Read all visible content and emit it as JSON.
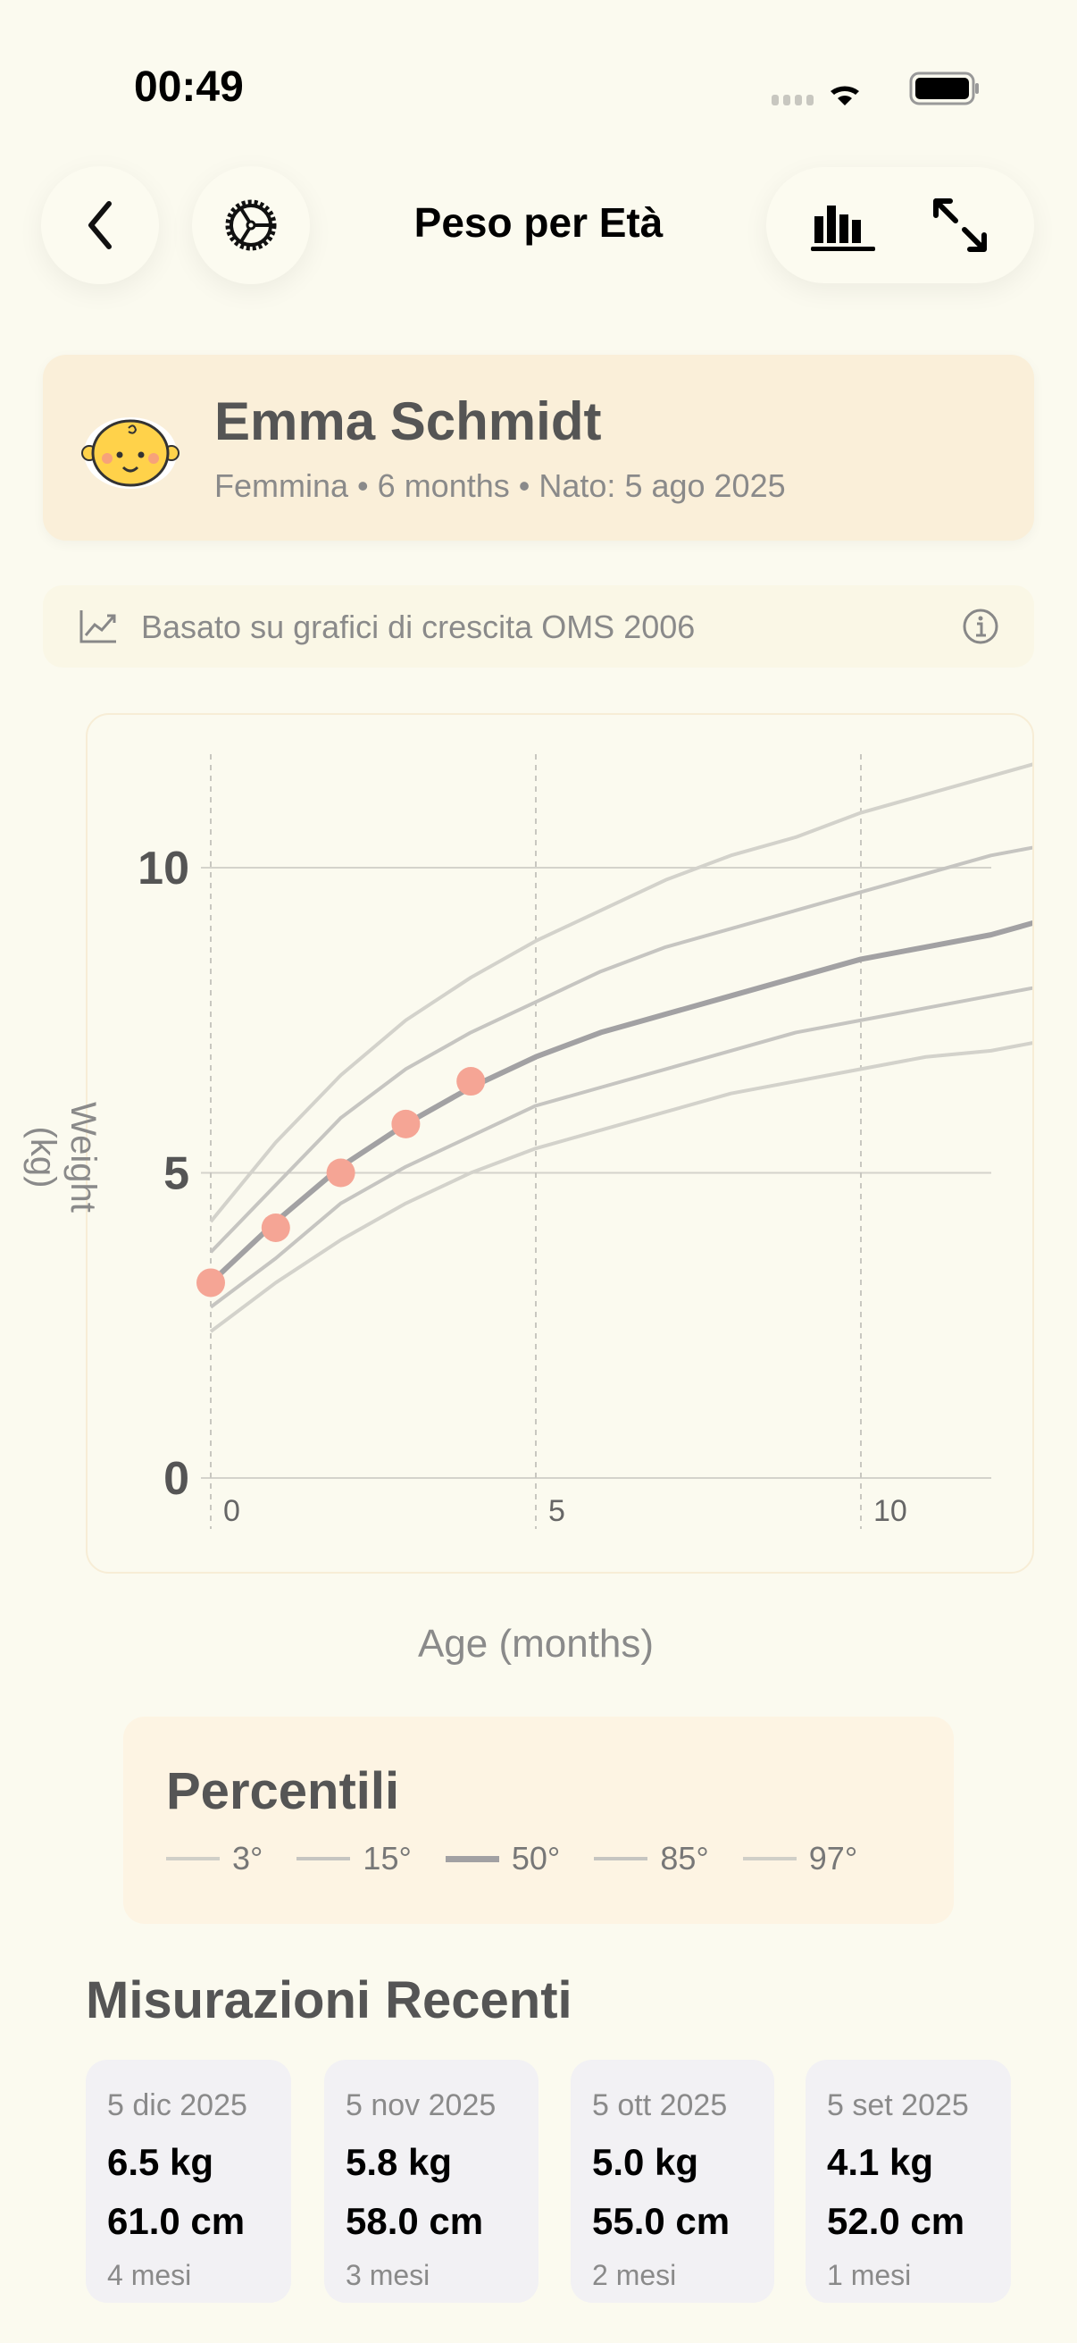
{
  "status": {
    "time": "00:49"
  },
  "header": {
    "title": "Peso per Età"
  },
  "profile": {
    "name": "Emma Schmidt",
    "sex": "Femmina",
    "age": "6 months",
    "born": "Nato: 5 ago 2025",
    "sep": "•"
  },
  "info": {
    "text": "Basato su grafici di crescita OMS 2006"
  },
  "chart_data": {
    "type": "line",
    "xlabel": "Age (months)",
    "ylabel": "Weight (kg)",
    "xlim": [
      -0.15,
      12.65
    ],
    "ylim": [
      0,
      11.8
    ],
    "xticks": [
      0,
      5,
      10
    ],
    "yticks": [
      0,
      5,
      10
    ],
    "x": [
      0,
      1,
      2,
      3,
      4,
      5,
      6,
      7,
      8,
      9,
      10,
      11,
      12,
      13
    ],
    "series": [
      {
        "name": "3°",
        "values": [
          2.4,
          3.2,
          3.9,
          4.5,
          5.0,
          5.4,
          5.7,
          6.0,
          6.3,
          6.5,
          6.7,
          6.9,
          7.0,
          7.2
        ],
        "color": "#d3d2cb",
        "width": 4
      },
      {
        "name": "15°",
        "values": [
          2.8,
          3.6,
          4.5,
          5.1,
          5.6,
          6.1,
          6.4,
          6.7,
          7.0,
          7.3,
          7.5,
          7.7,
          7.9,
          8.1
        ],
        "color": "#c6c5c1",
        "width": 4
      },
      {
        "name": "50°",
        "values": [
          3.2,
          4.2,
          5.1,
          5.8,
          6.4,
          6.9,
          7.3,
          7.6,
          7.9,
          8.2,
          8.5,
          8.7,
          8.9,
          9.2
        ],
        "color": "#a2a1a3",
        "width": 6
      },
      {
        "name": "85°",
        "values": [
          3.7,
          4.8,
          5.9,
          6.7,
          7.3,
          7.8,
          8.3,
          8.7,
          9.0,
          9.3,
          9.6,
          9.9,
          10.2,
          10.4
        ],
        "color": "#c6c5c1",
        "width": 4
      },
      {
        "name": "97°",
        "values": [
          4.2,
          5.5,
          6.6,
          7.5,
          8.2,
          8.8,
          9.3,
          9.8,
          10.2,
          10.5,
          10.9,
          11.2,
          11.5,
          11.8
        ],
        "color": "#d3d2cb",
        "width": 4
      }
    ],
    "measurements": {
      "x": [
        0,
        1,
        2,
        3,
        4
      ],
      "values": [
        3.2,
        4.1,
        5.0,
        5.8,
        6.5
      ],
      "color": "#f5a595"
    }
  },
  "legend": {
    "title": "Percentili",
    "items": [
      "3°",
      "15°",
      "50°",
      "85°",
      "97°"
    ]
  },
  "recent": {
    "title": "Misurazioni Recenti",
    "items": [
      {
        "date": "5 dic 2025",
        "weight": "6.5 kg",
        "height": "61.0 cm",
        "age": "4 mesi"
      },
      {
        "date": "5 nov 2025",
        "weight": "5.8 kg",
        "height": "58.0 cm",
        "age": "3 mesi"
      },
      {
        "date": "5 ott 2025",
        "weight": "5.0 kg",
        "height": "55.0 cm",
        "age": "2 mesi"
      },
      {
        "date": "5 set 2025",
        "weight": "4.1 kg",
        "height": "52.0 cm",
        "age": "1 mesi"
      }
    ]
  }
}
